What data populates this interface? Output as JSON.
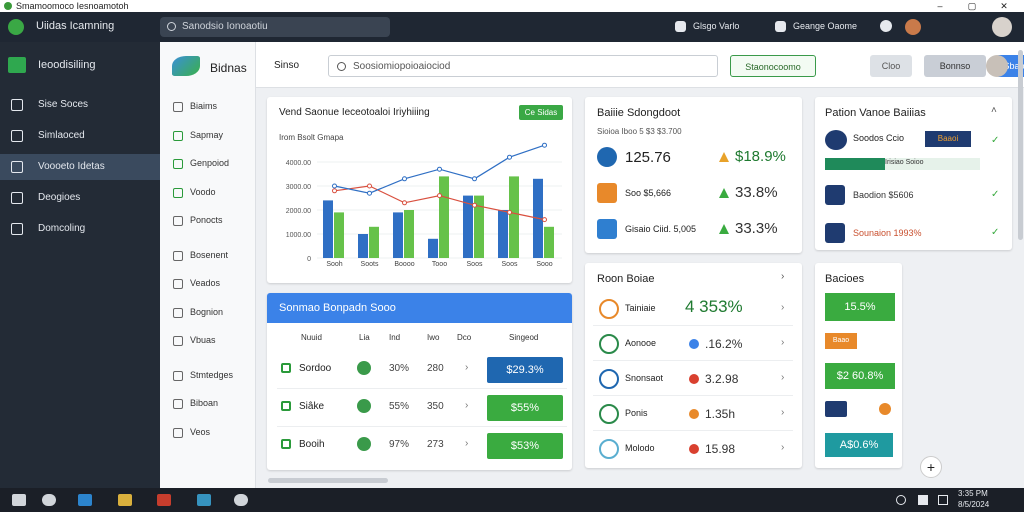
{
  "window": {
    "title": "Smamoomoco Iesnoamotoh"
  },
  "app_header": {
    "name": "Uiidas Icamning",
    "search": "Sanodsio Ionoaotiu",
    "actions": [
      "Glsgo Varlo",
      "Geange Oaome"
    ]
  },
  "sidebar": {
    "brand": "Ieoodisiliing",
    "items": [
      "Sise Soces",
      "Simlaoced",
      "Voooeto Idetas",
      "Deogioes",
      "Domcoling"
    ],
    "active": 2
  },
  "subnav": {
    "brand": "Bidnas",
    "items": [
      "Biaims",
      "Sapmay",
      "Genpoiod",
      "Voodo",
      "Ponocts",
      "Bosenent",
      "Veados",
      "Bognion",
      "Vbuas",
      "Stmtedges",
      "Biboan",
      "Veos"
    ]
  },
  "toolbar": {
    "label": "Sinso",
    "search": "Soosiomiopoioaiociod",
    "buttons": [
      "Staonocoomo",
      "Cloo",
      "Bonnso",
      "Sbao"
    ]
  },
  "sales_chart": {
    "type": "bar",
    "title": "Vend Saonue Ieceotoaloi Iriyhiiing",
    "badge": "Ce Sidas",
    "y_label": "Irom Bsolt Gmapa",
    "categories": [
      "Sooh",
      "Soots",
      "Boooo",
      "Tooo",
      "Soos",
      "Soos",
      "Sooo"
    ],
    "series": [
      {
        "kind": "bar",
        "color": "#2f6fc4",
        "values": [
          2400,
          1000,
          1900,
          800,
          2600,
          2000,
          3300
        ]
      },
      {
        "kind": "bar",
        "color": "#66c24a",
        "values": [
          1900,
          1300,
          2000,
          3400,
          2600,
          3400,
          1300
        ]
      },
      {
        "kind": "line",
        "color": "#d9503f",
        "values": [
          2800,
          3000,
          2300,
          2600,
          2200,
          1900,
          1600
        ]
      },
      {
        "kind": "line",
        "color": "#2f6fc4",
        "values": [
          3000,
          2700,
          3300,
          3700,
          3300,
          4200,
          4700
        ]
      }
    ],
    "ylim": [
      0,
      5000
    ],
    "yticks": [
      0,
      {
        "value": 1000,
        "label": "1000.00"
      },
      {
        "value": 2000,
        "label": "2000.00"
      },
      {
        "value": 3000,
        "label": "3000.00"
      },
      {
        "value": 4000,
        "label": "4000.00"
      }
    ]
  },
  "summary_card": {
    "title": "Baiiie Sdongdoot",
    "subtitle": "Sioioa Iboo 5 $3 $3.700",
    "rows": [
      [
        "125.76",
        "$18.9%"
      ],
      [
        "Soo $5,666",
        "33.8%"
      ],
      [
        "Gisaio Ciid. 5,005",
        "33.3%"
      ]
    ]
  },
  "pattern_card": {
    "title": "Pation Vanoe Baiiias",
    "badge": "Baaoi",
    "rows": [
      "Soodos Ccio",
      "Irisiao Soioo",
      "Baodion $5606",
      "Sounaion 1993%"
    ]
  },
  "table_card": {
    "title": "Sonmao Bonpadn Sooo",
    "columns": [
      "Nuuid",
      "Lia",
      "Ind",
      "Iwo",
      "Dco",
      "Singeod"
    ],
    "rows": [
      [
        "Sordoo",
        "30%",
        "280",
        "$29.3%"
      ],
      [
        "Siâke",
        "55%",
        "350",
        "$55%"
      ],
      [
        "Booih",
        "97%",
        "273",
        "$53%"
      ]
    ]
  },
  "region_card": {
    "title": "Roon Boiae",
    "rows": [
      [
        "Tainiaie",
        "4 353%"
      ],
      [
        "Aonooe",
        ".16.2%"
      ],
      [
        "Snonsaot",
        "3.2.98"
      ],
      [
        "Ponis",
        "1.35h"
      ],
      [
        "Molodo",
        "15.98"
      ]
    ]
  },
  "balance_card": {
    "title": "Bacioes",
    "values": [
      "15.5%",
      "Baao",
      "$2 60.8%",
      "A$0.6%"
    ]
  },
  "taskbar": {
    "time": "3:35 PM",
    "date": "8/5/2024"
  }
}
